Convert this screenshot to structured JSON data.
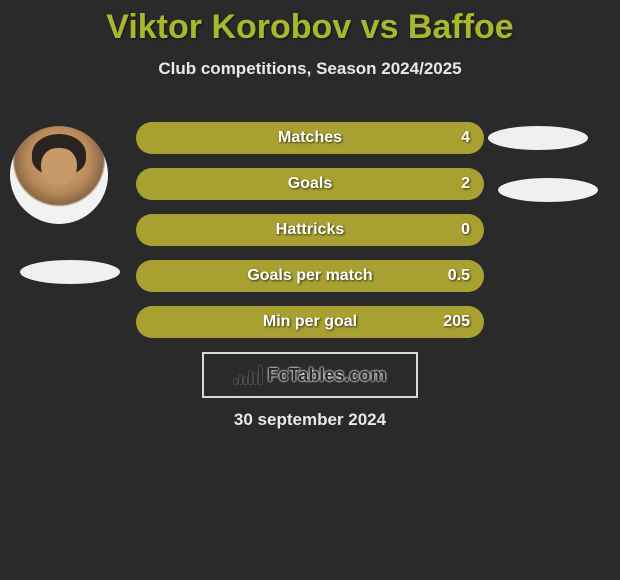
{
  "title": "Viktor Korobov vs Baffoe",
  "subtitle": "Club competitions, Season 2024/2025",
  "date": "30 september 2024",
  "logo_text": "FcTables.com",
  "colors": {
    "title": "#a8b82e",
    "bar_fill": "#a8a030",
    "bar_bg": "#8a8426",
    "background": "#2a2a2a",
    "text": "#e8e8e8",
    "shadow": "#f0f0f0"
  },
  "stats": [
    {
      "label": "Matches",
      "value": "4",
      "fill_pct": 100
    },
    {
      "label": "Goals",
      "value": "2",
      "fill_pct": 100
    },
    {
      "label": "Hattricks",
      "value": "0",
      "fill_pct": 100
    },
    {
      "label": "Goals per match",
      "value": "0.5",
      "fill_pct": 100
    },
    {
      "label": "Min per goal",
      "value": "205",
      "fill_pct": 100
    }
  ],
  "logo_bar_heights": [
    5,
    9,
    7,
    13,
    11,
    18
  ]
}
